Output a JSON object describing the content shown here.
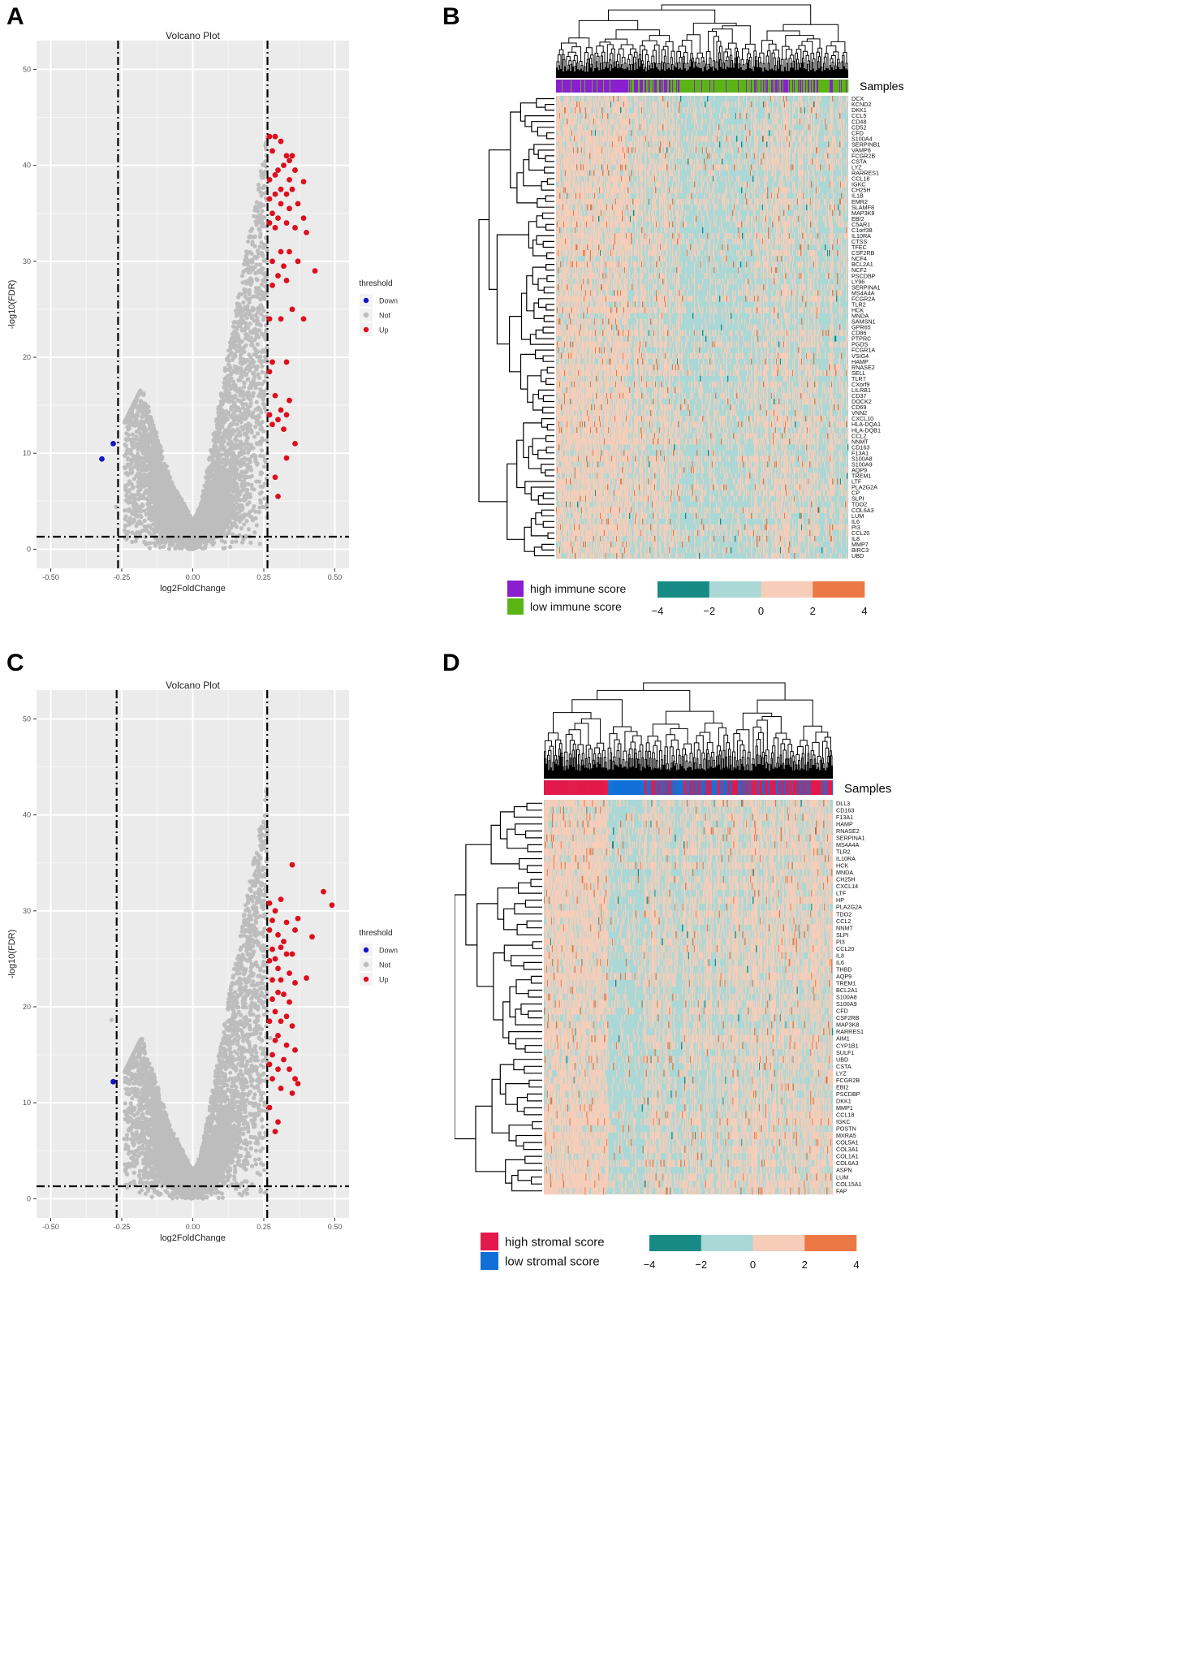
{
  "panels": [
    {
      "letter": "A"
    },
    {
      "letter": "B"
    },
    {
      "letter": "C"
    },
    {
      "letter": "D"
    }
  ],
  "colors": {
    "up": "#dd0f1e",
    "down": "#1313c8",
    "not": "#bdbdbd",
    "plot_bg": "#ebebeb",
    "high_immune": "#8b1fd0",
    "low_immune": "#5ab514",
    "high_stromal": "#e2194b",
    "low_stromal": "#1070d8",
    "heat_scale": [
      "#188a85",
      "#a9d8d6",
      "#f6cdb9",
      "#ec7845"
    ]
  },
  "chart_data": [
    {
      "type": "scatter",
      "title": "Volcano Plot",
      "xlabel": "log2FoldChange",
      "ylabel": "-log10(FDR)",
      "xlim": [
        -0.55,
        0.55
      ],
      "ylim": [
        -2,
        53
      ],
      "xticks": [
        -0.5,
        -0.25,
        0.0,
        0.25,
        0.5
      ],
      "xtick_labels": [
        "-0.50",
        "-0.25",
        "0.00",
        "0.25",
        "0.50"
      ],
      "yticks": [
        0,
        10,
        20,
        30,
        40,
        50
      ],
      "ytick_labels": [
        "0",
        "10",
        "20",
        "30",
        "40",
        "50"
      ],
      "vlines": [
        -0.263,
        0.263
      ],
      "hline": 1.3,
      "legend": {
        "title": "threshold",
        "items": [
          "Down",
          "Not",
          "Up"
        ],
        "position": "right"
      },
      "series": [
        {
          "name": "Down",
          "points": [
            [
              -0.28,
              11.0
            ],
            [
              -0.32,
              9.4
            ]
          ]
        },
        {
          "name": "Up",
          "points": [
            [
              0.27,
              43.0
            ],
            [
              0.29,
              43.0
            ],
            [
              0.31,
              42.5
            ],
            [
              0.28,
              41.5
            ],
            [
              0.33,
              41.0
            ],
            [
              0.35,
              41.0
            ],
            [
              0.34,
              40.5
            ],
            [
              0.32,
              40.0
            ],
            [
              0.3,
              39.5
            ],
            [
              0.29,
              39.0
            ],
            [
              0.36,
              39.5
            ],
            [
              0.34,
              38.5
            ],
            [
              0.27,
              38.5
            ],
            [
              0.39,
              38.3
            ],
            [
              0.31,
              37.5
            ],
            [
              0.33,
              37.0
            ],
            [
              0.35,
              37.5
            ],
            [
              0.29,
              37.0
            ],
            [
              0.27,
              36.5
            ],
            [
              0.31,
              36.0
            ],
            [
              0.34,
              35.5
            ],
            [
              0.37,
              36.0
            ],
            [
              0.28,
              35.0
            ],
            [
              0.3,
              34.5
            ],
            [
              0.33,
              34.0
            ],
            [
              0.39,
              34.5
            ],
            [
              0.27,
              34.0
            ],
            [
              0.29,
              33.5
            ],
            [
              0.36,
              33.5
            ],
            [
              0.4,
              33.0
            ],
            [
              0.31,
              31.0
            ],
            [
              0.34,
              31.0
            ],
            [
              0.28,
              30.0
            ],
            [
              0.32,
              29.5
            ],
            [
              0.37,
              30.0
            ],
            [
              0.43,
              29.0
            ],
            [
              0.3,
              28.5
            ],
            [
              0.33,
              28.0
            ],
            [
              0.28,
              27.5
            ],
            [
              0.35,
              25.0
            ],
            [
              0.27,
              24.0
            ],
            [
              0.31,
              24.0
            ],
            [
              0.39,
              24.0
            ],
            [
              0.28,
              19.5
            ],
            [
              0.33,
              19.5
            ],
            [
              0.27,
              18.5
            ],
            [
              0.29,
              16.0
            ],
            [
              0.34,
              15.5
            ],
            [
              0.31,
              14.5
            ],
            [
              0.27,
              14.0
            ],
            [
              0.33,
              14.0
            ],
            [
              0.3,
              13.5
            ],
            [
              0.28,
              13.0
            ],
            [
              0.32,
              12.5
            ],
            [
              0.36,
              11.0
            ],
            [
              0.33,
              9.5
            ],
            [
              0.29,
              7.5
            ],
            [
              0.3,
              5.5
            ]
          ]
        }
      ],
      "not_series": "~8000 grey non-significant genes forming a V-shaped cloud centered at 0"
    },
    {
      "type": "heatmap",
      "track_label": "Samples",
      "genes": [
        "DCX",
        "KCND2",
        "DKK1",
        "CCL5",
        "CD48",
        "CD52",
        "CFD",
        "S100A4",
        "SERPINB1",
        "VAMP8",
        "FCGR2B",
        "CSTA",
        "LYZ",
        "RARRES1",
        "CCL18",
        "IGKC",
        "CH25H",
        "IL1B",
        "EMR2",
        "SLAMF8",
        "MAP3K8",
        "EBI2",
        "C5AR1",
        "C1orf38",
        "IL10RA",
        "CTSS",
        "TFEC",
        "CSF2RB",
        "NCF4",
        "BCL2A1",
        "NCF2",
        "PSCDBP",
        "LY96",
        "SERPINA1",
        "MS4A4A",
        "FCGR2A",
        "TLR2",
        "HCK",
        "MNDA",
        "SAMSN1",
        "GPR65",
        "CD86",
        "PTPRC",
        "PGDS",
        "FCGR1A",
        "VSIG4",
        "HAMP",
        "RNASE2",
        "SELL",
        "TLR7",
        "CXorf9",
        "LILRB1",
        "CD37",
        "DOCK2",
        "CD69",
        "VNN2",
        "CXCL10",
        "HLA-DQA1",
        "HLA-DQB1",
        "CCL2",
        "NNMT",
        "CD163",
        "F13A1",
        "S100A8",
        "S100A9",
        "AQP9",
        "TREM1",
        "LTF",
        "PLA2G2A",
        "CP",
        "SLPI",
        "TDO2",
        "COL6A3",
        "LUM",
        "IL6",
        "PI3",
        "CCL20",
        "IL8",
        "MMP7",
        "BIRC3",
        "UBD"
      ],
      "legend_groups": [
        "high immune score",
        "low immune score"
      ],
      "scale_ticks": [
        "−4",
        "−2",
        "0",
        "2",
        "4"
      ],
      "scale_values": [
        -4,
        -2,
        0,
        2,
        4
      ]
    },
    {
      "type": "scatter",
      "title": "Volcano Plot",
      "xlabel": "log2FoldChange",
      "ylabel": "-log10(FDR)",
      "xlim": [
        -0.55,
        0.55
      ],
      "ylim": [
        -2,
        53
      ],
      "xticks": [
        -0.5,
        -0.25,
        0.0,
        0.25,
        0.5
      ],
      "xtick_labels": [
        "-0.50",
        "-0.25",
        "0.00",
        "0.25",
        "0.50"
      ],
      "yticks": [
        0,
        10,
        20,
        30,
        40,
        50
      ],
      "ytick_labels": [
        "0",
        "10",
        "20",
        "30",
        "40",
        "50"
      ],
      "vlines": [
        -0.268,
        0.262
      ],
      "hline": 1.3,
      "legend": {
        "title": "threshold",
        "items": [
          "Down",
          "Not",
          "Up"
        ],
        "position": "right"
      },
      "series": [
        {
          "name": "Down",
          "points": [
            [
              -0.28,
              12.2
            ]
          ]
        },
        {
          "name": "Up",
          "points": [
            [
              0.35,
              34.8
            ],
            [
              0.46,
              32.0
            ],
            [
              0.49,
              30.6
            ],
            [
              0.27,
              30.8
            ],
            [
              0.29,
              30.0
            ],
            [
              0.31,
              31.2
            ],
            [
              0.28,
              29.0
            ],
            [
              0.33,
              28.8
            ],
            [
              0.37,
              29.2
            ],
            [
              0.36,
              28.0
            ],
            [
              0.42,
              27.3
            ],
            [
              0.27,
              28.0
            ],
            [
              0.3,
              27.5
            ],
            [
              0.32,
              26.8
            ],
            [
              0.28,
              26.0
            ],
            [
              0.31,
              26.2
            ],
            [
              0.33,
              25.5
            ],
            [
              0.29,
              25.0
            ],
            [
              0.35,
              25.5
            ],
            [
              0.27,
              24.8
            ],
            [
              0.3,
              24.0
            ],
            [
              0.34,
              23.5
            ],
            [
              0.28,
              22.8
            ],
            [
              0.31,
              22.8
            ],
            [
              0.4,
              23.0
            ],
            [
              0.36,
              22.5
            ],
            [
              0.3,
              21.5
            ],
            [
              0.32,
              21.3
            ],
            [
              0.28,
              20.8
            ],
            [
              0.34,
              20.5
            ],
            [
              0.29,
              19.5
            ],
            [
              0.33,
              19.0
            ],
            [
              0.31,
              18.5
            ],
            [
              0.27,
              18.5
            ],
            [
              0.35,
              18.0
            ],
            [
              0.3,
              17.0
            ],
            [
              0.29,
              16.5
            ],
            [
              0.33,
              16.0
            ],
            [
              0.28,
              15.0
            ],
            [
              0.36,
              15.5
            ],
            [
              0.32,
              14.5
            ],
            [
              0.27,
              14.0
            ],
            [
              0.3,
              13.5
            ],
            [
              0.34,
              13.5
            ],
            [
              0.28,
              12.5
            ],
            [
              0.36,
              12.5
            ],
            [
              0.37,
              12.0
            ],
            [
              0.31,
              11.5
            ],
            [
              0.35,
              11.0
            ],
            [
              0.27,
              9.5
            ],
            [
              0.3,
              8.0
            ],
            [
              0.29,
              7.0
            ]
          ]
        }
      ],
      "not_series": "~8000 grey non-significant genes forming a V-shaped cloud centered at 0"
    },
    {
      "type": "heatmap",
      "track_label": "Samples",
      "genes": [
        "DLL3",
        "CD163",
        "F13A1",
        "HAMP",
        "RNASE2",
        "SERPINA1",
        "MS4A4A",
        "TLR2",
        "IL10RA",
        "HCK",
        "MNDA",
        "CH25H",
        "CXCL14",
        "LTF",
        "HP",
        "PLA2G2A",
        "TDO2",
        "CCL2",
        "NNMT",
        "SLPI",
        "PI3",
        "CCL20",
        "IL8",
        "IL6",
        "THBD",
        "AQP9",
        "TREM1",
        "BCL2A1",
        "S100A8",
        "S100A9",
        "CFD",
        "CSF2RB",
        "MAP3K8",
        "RARRES1",
        "AIM1",
        "CYP1B1",
        "SULF1",
        "UBD",
        "CSTA",
        "LYZ",
        "FCGR2B",
        "EBI2",
        "PSCDBP",
        "DKK1",
        "MMP1",
        "CCL18",
        "IGKC",
        "POSTN",
        "MXRA5",
        "COL5A1",
        "COL3A1",
        "COL1A1",
        "COL6A3",
        "ASPN",
        "LUM",
        "COL15A1",
        "FAP"
      ],
      "legend_groups": [
        "high stromal score",
        "low stromal score"
      ],
      "scale_ticks": [
        "−4",
        "−2",
        "0",
        "2",
        "4"
      ],
      "scale_values": [
        -4,
        -2,
        0,
        2,
        4
      ]
    }
  ]
}
